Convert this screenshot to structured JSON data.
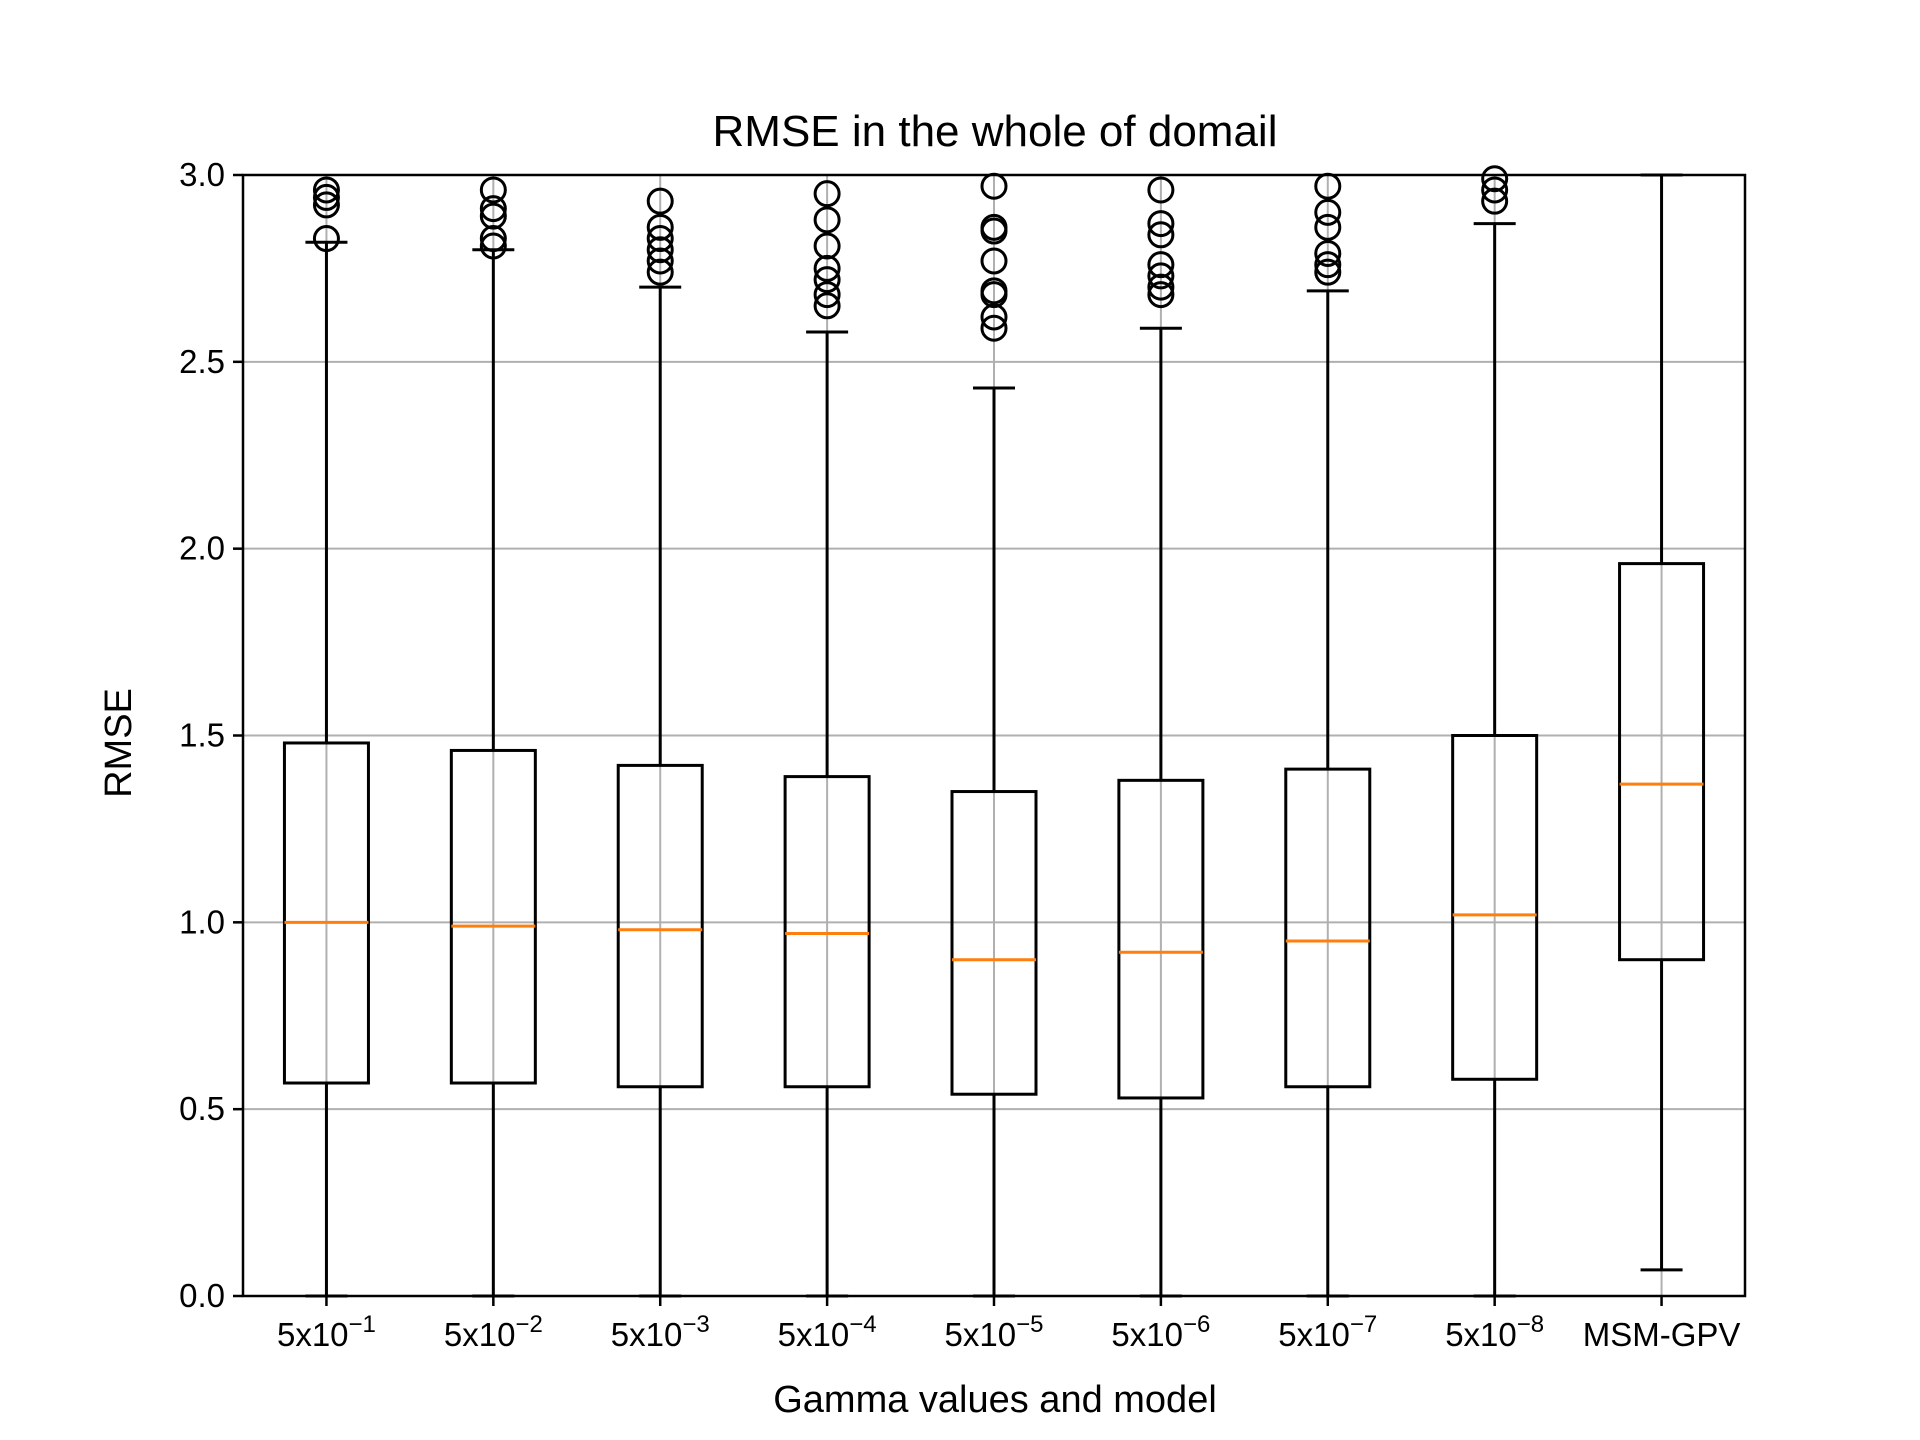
{
  "chart_data": {
    "type": "box",
    "title": "RMSE in the whole of domail",
    "xlabel": "Gamma values and model",
    "ylabel": "RMSE",
    "ylim": [
      0,
      3.0
    ],
    "yticks": [
      0.0,
      0.5,
      1.0,
      1.5,
      2.0,
      2.5,
      3.0
    ],
    "ytick_labels": [
      "0.0",
      "0.5",
      "1.0",
      "1.5",
      "2.0",
      "2.5",
      "3.0"
    ],
    "grid": true,
    "colors": {
      "box": "#000000",
      "median": "#ff7f0e",
      "grid": "#b0b0b0",
      "background": "#ffffff"
    },
    "categories": [
      {
        "base": "5x10",
        "exp": "−1"
      },
      {
        "base": "5x10",
        "exp": "−2"
      },
      {
        "base": "5x10",
        "exp": "−3"
      },
      {
        "base": "5x10",
        "exp": "−4"
      },
      {
        "base": "5x10",
        "exp": "−5"
      },
      {
        "base": "5x10",
        "exp": "−6"
      },
      {
        "base": "5x10",
        "exp": "−7"
      },
      {
        "base": "5x10",
        "exp": "−8"
      },
      {
        "base": "MSM-GPV",
        "exp": ""
      }
    ],
    "boxes": [
      {
        "whislo": 0.0,
        "q1": 0.57,
        "med": 1.0,
        "q3": 1.48,
        "whishi": 2.82,
        "fliers": [
          2.83,
          2.92,
          2.94,
          2.96
        ]
      },
      {
        "whislo": 0.0,
        "q1": 0.57,
        "med": 0.99,
        "q3": 1.46,
        "whishi": 2.8,
        "fliers": [
          2.81,
          2.83,
          2.89,
          2.91,
          2.96
        ]
      },
      {
        "whislo": 0.0,
        "q1": 0.56,
        "med": 0.98,
        "q3": 1.42,
        "whishi": 2.7,
        "fliers": [
          2.74,
          2.77,
          2.8,
          2.83,
          2.86,
          2.93
        ]
      },
      {
        "whislo": 0.0,
        "q1": 0.56,
        "med": 0.97,
        "q3": 1.39,
        "whishi": 2.58,
        "fliers": [
          2.65,
          2.68,
          2.72,
          2.75,
          2.81,
          2.88,
          2.95
        ]
      },
      {
        "whislo": 0.0,
        "q1": 0.54,
        "med": 0.9,
        "q3": 1.35,
        "whishi": 2.43,
        "fliers": [
          2.59,
          2.62,
          2.68,
          2.69,
          2.77,
          2.85,
          2.86,
          2.97
        ]
      },
      {
        "whislo": 0.0,
        "q1": 0.53,
        "med": 0.92,
        "q3": 1.38,
        "whishi": 2.59,
        "fliers": [
          2.68,
          2.7,
          2.73,
          2.76,
          2.84,
          2.87,
          2.96
        ]
      },
      {
        "whislo": 0.0,
        "q1": 0.56,
        "med": 0.95,
        "q3": 1.41,
        "whishi": 2.69,
        "fliers": [
          2.74,
          2.76,
          2.79,
          2.86,
          2.9,
          2.97
        ]
      },
      {
        "whislo": 0.0,
        "q1": 0.58,
        "med": 1.02,
        "q3": 1.5,
        "whishi": 2.87,
        "fliers": [
          2.93,
          2.96,
          2.99
        ]
      },
      {
        "whislo": 0.07,
        "q1": 0.9,
        "med": 1.37,
        "q3": 1.96,
        "whishi": 3.0,
        "fliers": []
      }
    ]
  }
}
